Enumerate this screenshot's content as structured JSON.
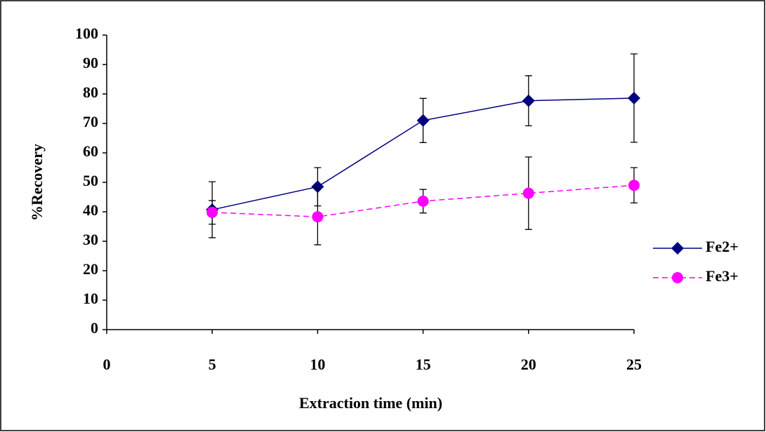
{
  "chart_data": {
    "type": "line",
    "x_label": "Extraction time (min)",
    "y_label": "%Recovery",
    "xlim": [
      0,
      25
    ],
    "xticks": [
      0,
      5,
      10,
      15,
      20,
      25
    ],
    "ylim": [
      0,
      100
    ],
    "yticks": [
      0,
      10,
      20,
      30,
      40,
      50,
      60,
      70,
      80,
      90,
      100
    ],
    "x": [
      5,
      10,
      15,
      20,
      25
    ],
    "legend": "right",
    "series": [
      {
        "name": "Fe2+",
        "color": "#000080",
        "marker": "diamond",
        "dashed": false,
        "values": [
          40.7,
          48.5,
          71,
          77.7,
          78.6
        ],
        "errors": [
          9.5,
          6.5,
          7.5,
          8.5,
          15
        ]
      },
      {
        "name": "Fe3+",
        "color": "#ff00ff",
        "marker": "circle",
        "dashed": true,
        "values": [
          39.8,
          38.3,
          43.6,
          46.3,
          49
        ],
        "errors": [
          4,
          9.5,
          4,
          12.3,
          6
        ]
      }
    ]
  }
}
